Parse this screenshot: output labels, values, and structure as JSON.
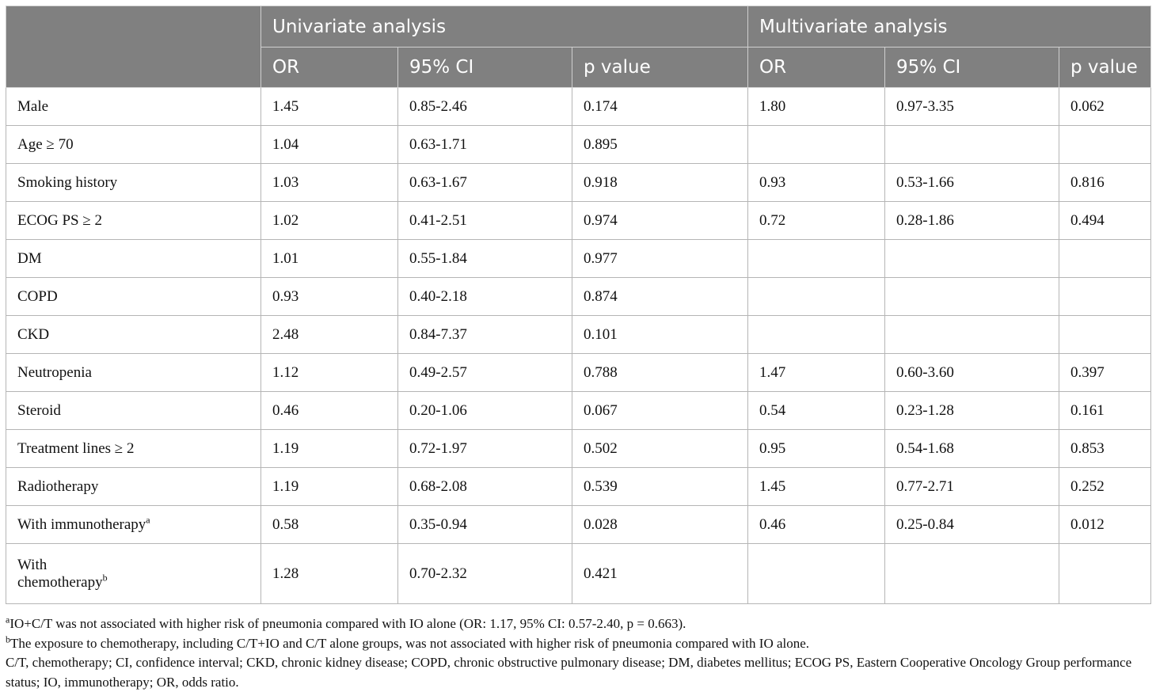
{
  "header": {
    "groups": [
      "",
      "Univariate analysis",
      "Multivariate analysis"
    ],
    "columns": [
      "OR",
      "95% CI",
      "p value",
      "OR",
      "95% CI",
      "p value"
    ]
  },
  "rows": [
    {
      "label": "Male",
      "sup": "",
      "values": [
        "1.45",
        "0.85-2.46",
        "0.174",
        "1.80",
        "0.97-3.35",
        "0.062"
      ]
    },
    {
      "label": "Age ≥ 70",
      "sup": "",
      "values": [
        "1.04",
        "0.63-1.71",
        "0.895",
        "",
        "",
        ""
      ]
    },
    {
      "label": "Smoking history",
      "sup": "",
      "values": [
        "1.03",
        "0.63-1.67",
        "0.918",
        "0.93",
        "0.53-1.66",
        "0.816"
      ]
    },
    {
      "label": "ECOG PS ≥ 2",
      "sup": "",
      "values": [
        "1.02",
        "0.41-2.51",
        "0.974",
        "0.72",
        "0.28-1.86",
        "0.494"
      ]
    },
    {
      "label": "DM",
      "sup": "",
      "values": [
        "1.01",
        "0.55-1.84",
        "0.977",
        "",
        "",
        ""
      ]
    },
    {
      "label": "COPD",
      "sup": "",
      "values": [
        "0.93",
        "0.40-2.18",
        "0.874",
        "",
        "",
        ""
      ]
    },
    {
      "label": "CKD",
      "sup": "",
      "values": [
        "2.48",
        "0.84-7.37",
        "0.101",
        "",
        "",
        ""
      ]
    },
    {
      "label": "Neutropenia",
      "sup": "",
      "values": [
        "1.12",
        "0.49-2.57",
        "0.788",
        "1.47",
        "0.60-3.60",
        "0.397"
      ]
    },
    {
      "label": "Steroid",
      "sup": "",
      "values": [
        "0.46",
        "0.20-1.06",
        "0.067",
        "0.54",
        "0.23-1.28",
        "0.161"
      ]
    },
    {
      "label": "Treatment lines ≥ 2",
      "sup": "",
      "values": [
        "1.19",
        "0.72-1.97",
        "0.502",
        "0.95",
        "0.54-1.68",
        "0.853"
      ]
    },
    {
      "label": "Radiotherapy",
      "sup": "",
      "values": [
        "1.19",
        "0.68-2.08",
        "0.539",
        "1.45",
        "0.77-2.71",
        "0.252"
      ]
    },
    {
      "label": "With immunotherapy",
      "sup": "a",
      "values": [
        "0.58",
        "0.35-0.94",
        "0.028",
        "0.46",
        "0.25-0.84",
        "0.012"
      ]
    },
    {
      "label_line1": "With",
      "label_line2": "chemotherapy",
      "sup": "b",
      "values": [
        "1.28",
        "0.70-2.32",
        "0.421",
        "",
        "",
        ""
      ]
    }
  ],
  "footnotes": [
    {
      "mark": "a",
      "text": "IO+C/T was not associated with higher risk of pneumonia compared with IO alone (OR: 1.17, 95% CI: 0.57-2.40, p = 0.663)."
    },
    {
      "mark": "b",
      "text": "The exposure to chemotherapy, including C/T+IO and C/T alone groups, was not associated with higher risk of pneumonia compared with IO alone."
    },
    {
      "mark": "",
      "text": "C/T, chemotherapy; CI, confidence interval; CKD, chronic kidney disease; COPD, chronic obstructive pulmonary disease; DM, diabetes mellitus; ECOG PS, Eastern Cooperative Oncology Group performance status; IO, immunotherapy; OR, odds ratio."
    }
  ]
}
